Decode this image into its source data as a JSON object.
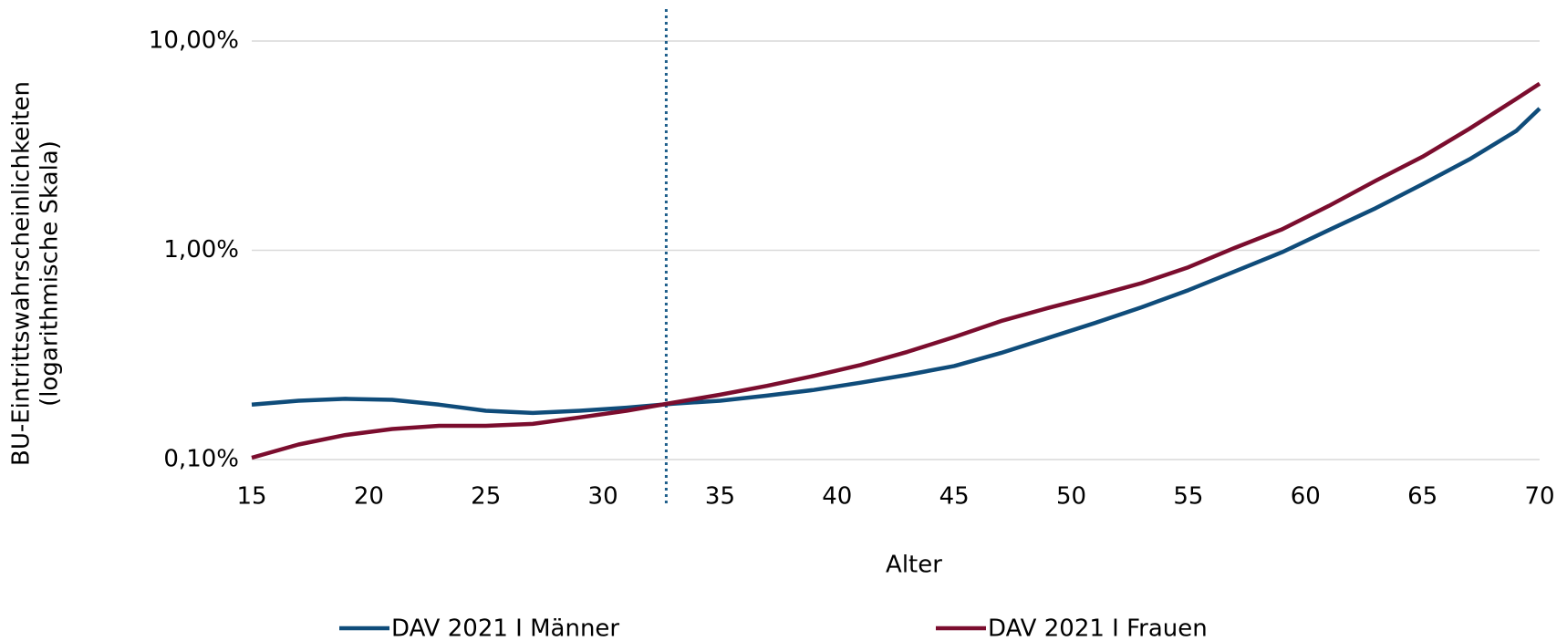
{
  "chart_data": {
    "type": "line",
    "xlabel": "Alter",
    "ylabel": [
      "BU-Eintrittswahrscheinlichkeiten",
      "(logarithmische Skala)"
    ],
    "x": [
      15,
      17,
      19,
      21,
      23,
      25,
      27,
      29,
      31,
      33,
      35,
      37,
      39,
      41,
      43,
      45,
      47,
      49,
      51,
      53,
      55,
      57,
      59,
      61,
      63,
      65,
      67,
      69,
      70
    ],
    "series": [
      {
        "name": "DAV 2021 I Männer",
        "color": "#0f4c7a",
        "values": [
          0.183,
          0.191,
          0.195,
          0.193,
          0.183,
          0.171,
          0.167,
          0.171,
          0.177,
          0.185,
          0.191,
          0.202,
          0.215,
          0.233,
          0.254,
          0.28,
          0.323,
          0.381,
          0.449,
          0.534,
          0.645,
          0.795,
          0.979,
          1.25,
          1.59,
          2.07,
          2.72,
          3.72,
          4.76
        ]
      },
      {
        "name": "DAV 2021 I Frauen",
        "color": "#7b0d2e",
        "values": [
          0.102,
          0.118,
          0.131,
          0.14,
          0.145,
          0.145,
          0.148,
          0.159,
          0.171,
          0.187,
          0.204,
          0.225,
          0.251,
          0.283,
          0.327,
          0.385,
          0.459,
          0.53,
          0.605,
          0.697,
          0.83,
          1.03,
          1.26,
          1.63,
          2.15,
          2.8,
          3.81,
          5.29,
          6.25
        ]
      }
    ],
    "xlim": [
      15,
      70
    ],
    "xticks": [
      15,
      20,
      25,
      30,
      35,
      40,
      45,
      50,
      55,
      60,
      65,
      70
    ],
    "ylim": [
      0.1,
      10
    ],
    "yticks": [
      {
        "value": 0.1,
        "label": "0,10%"
      },
      {
        "value": 1,
        "label": "1,00%"
      },
      {
        "value": 10,
        "label": "10,00%"
      }
    ],
    "log_y": true,
    "grid": true,
    "reference_line_x": 32.7,
    "reference_line_color": "#1f5f8b",
    "legend": "bottom"
  }
}
